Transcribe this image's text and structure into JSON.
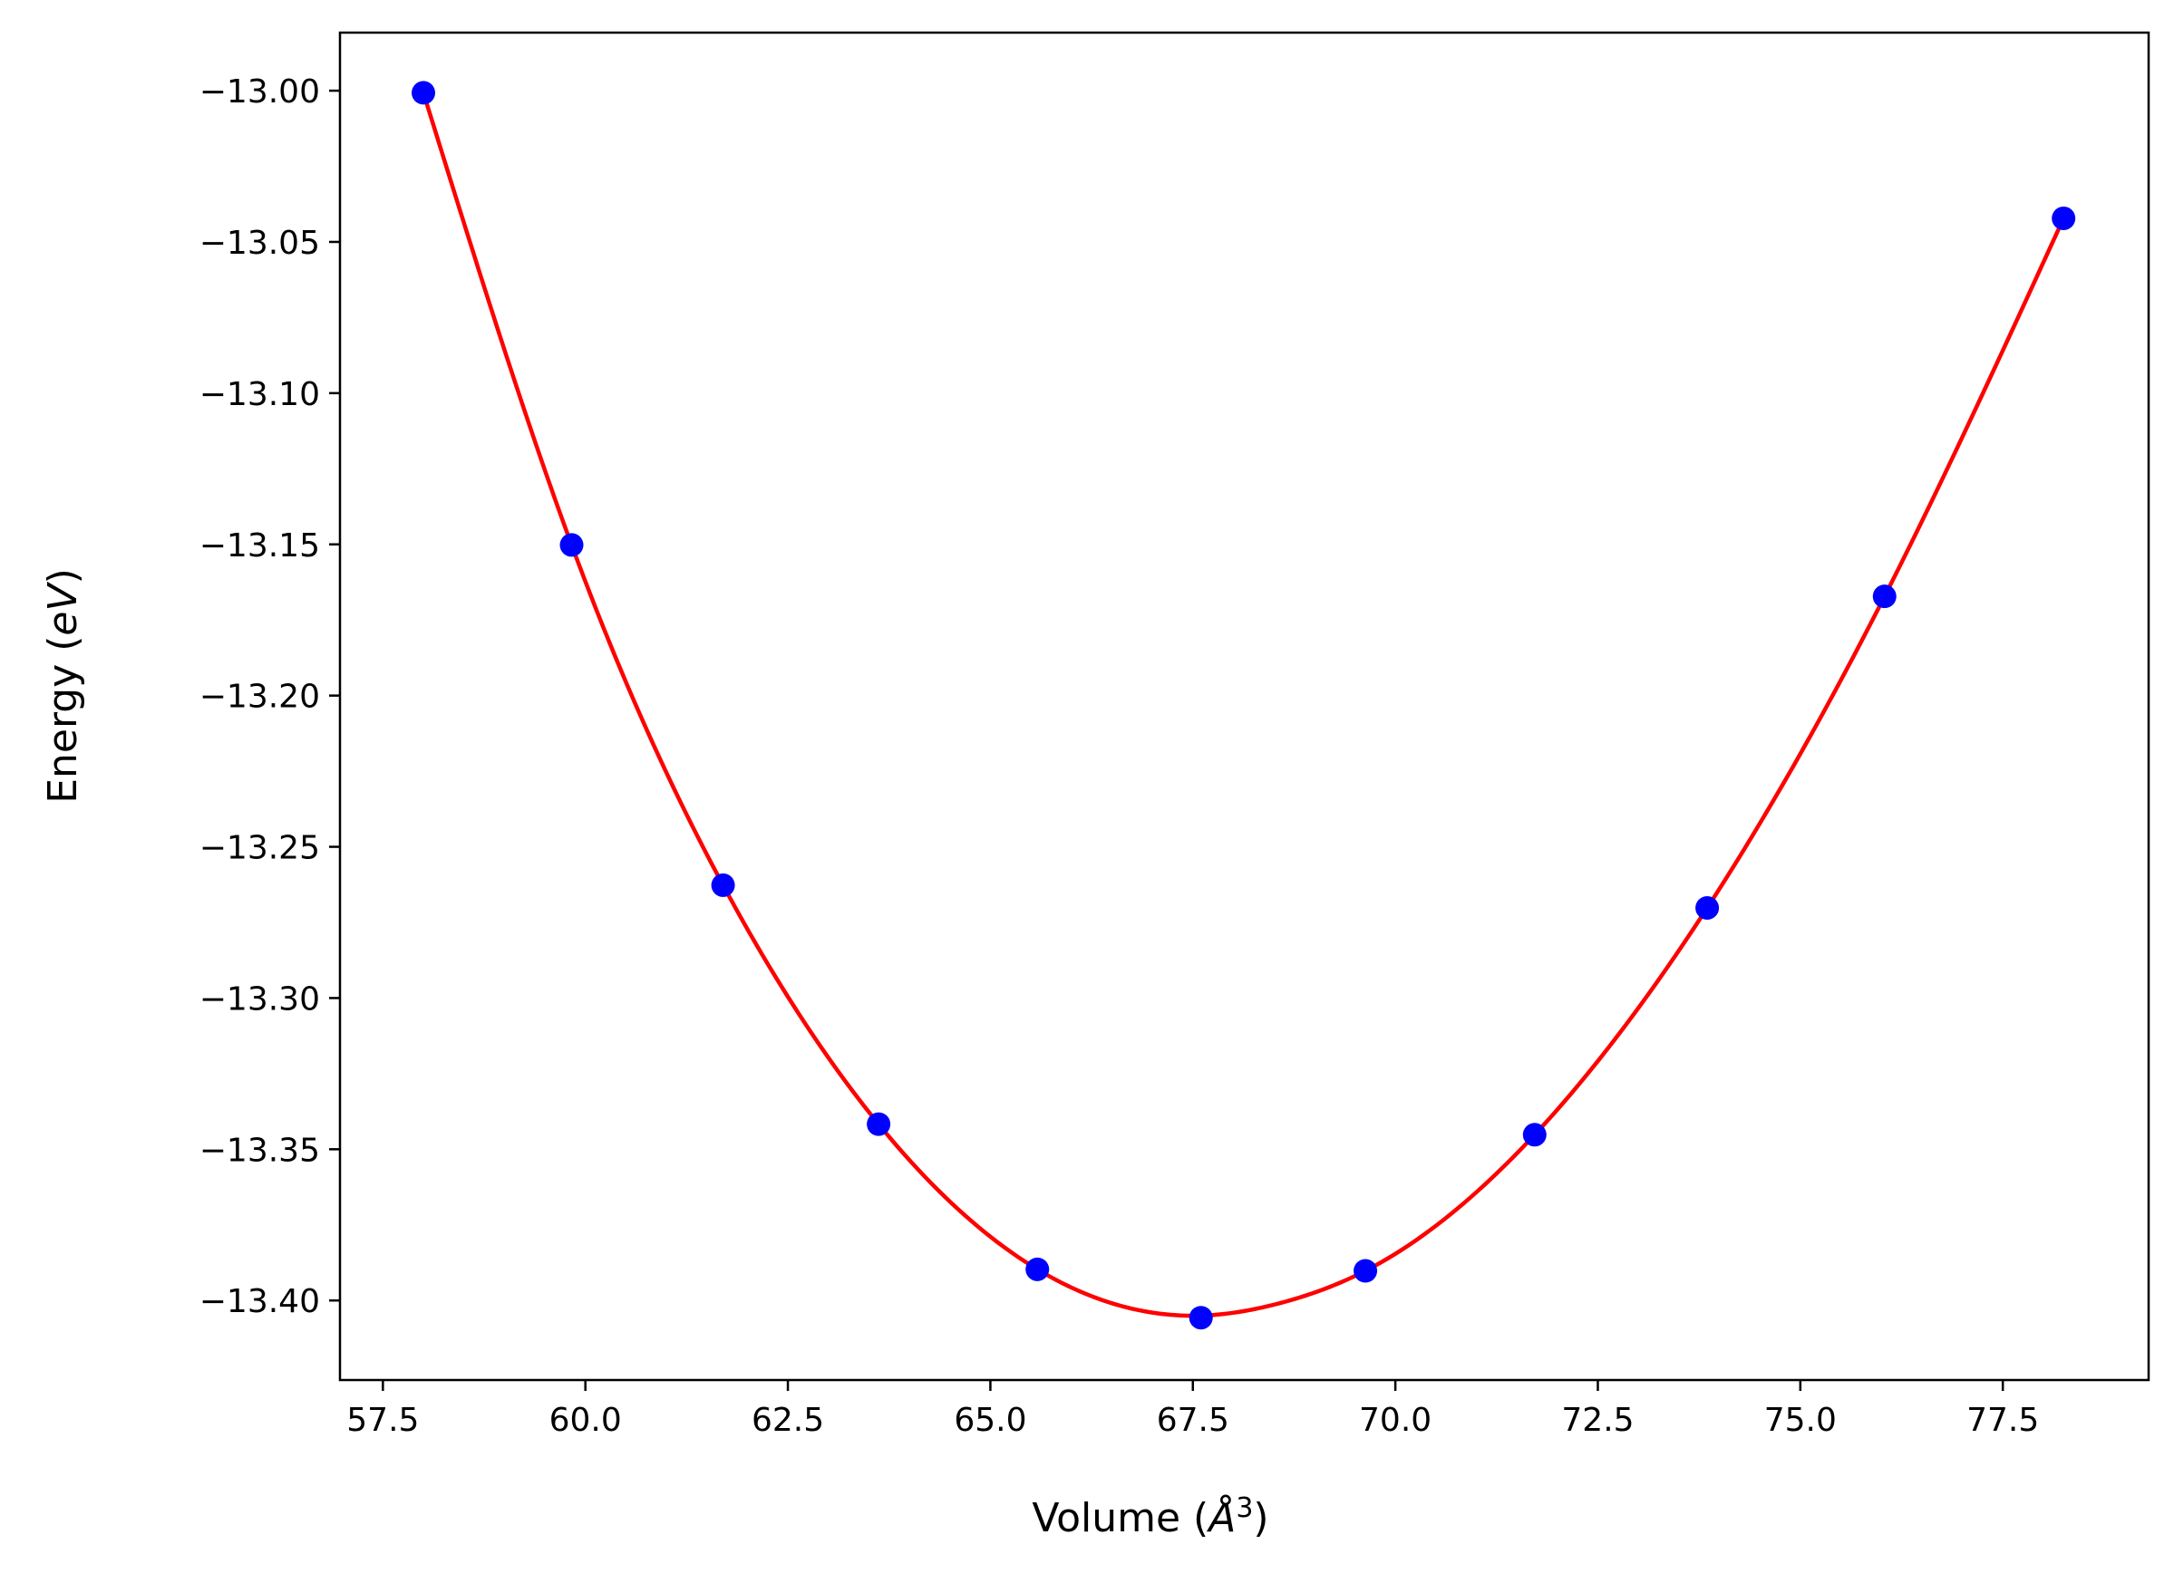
{
  "chart_data": {
    "type": "scatter",
    "xlabel": "Volume (Å³)",
    "xlabel_parts": {
      "prefix": "Volume (",
      "unit": "Å",
      "sup": "3",
      "suffix": ")"
    },
    "ylabel": "Energy (eV)",
    "ylabel_parts": {
      "prefix": "Energy (",
      "unit": "eV",
      "suffix": ")"
    },
    "xlim": [
      56.97,
      79.3
    ],
    "ylim": [
      -13.4263,
      -12.9808
    ],
    "x_ticks": [
      57.5,
      60.0,
      62.5,
      65.0,
      67.5,
      70.0,
      72.5,
      75.0,
      77.5
    ],
    "x_tick_labels": [
      "57.5",
      "60.0",
      "62.5",
      "65.0",
      "67.5",
      "70.0",
      "72.5",
      "75.0",
      "77.5"
    ],
    "y_ticks": [
      -13.0,
      -13.05,
      -13.1,
      -13.15,
      -13.2,
      -13.25,
      -13.3,
      -13.35,
      -13.4
    ],
    "y_tick_labels": [
      "−13.00",
      "−13.05",
      "−13.10",
      "−13.15",
      "−13.20",
      "−13.25",
      "−13.30",
      "−13.35",
      "−13.40"
    ],
    "grid": false,
    "colors": {
      "points": "#0000ff",
      "fit": "#ff0000",
      "axes": "#000000"
    },
    "series": [
      {
        "kind": "points",
        "x": [
          58.0,
          59.83,
          61.7,
          63.62,
          65.58,
          67.6,
          69.63,
          71.72,
          73.85,
          76.04,
          78.25
        ],
        "y": [
          -13.0007,
          -13.1502,
          -13.2627,
          -13.3417,
          -13.3897,
          -13.4057,
          -13.3902,
          -13.3452,
          -13.2702,
          -13.1672,
          -13.0422
        ]
      },
      {
        "kind": "fit_curve",
        "x": [
          58.0,
          59.83,
          61.7,
          63.62,
          65.58,
          66.6,
          67.6,
          68.6,
          69.63,
          71.72,
          73.85,
          76.04,
          78.25
        ],
        "y": [
          -13.0007,
          -13.1502,
          -13.2627,
          -13.3417,
          -13.3897,
          -13.4017,
          -13.405,
          -13.4007,
          -13.3902,
          -13.3452,
          -13.2702,
          -13.1672,
          -13.0422
        ]
      }
    ]
  }
}
